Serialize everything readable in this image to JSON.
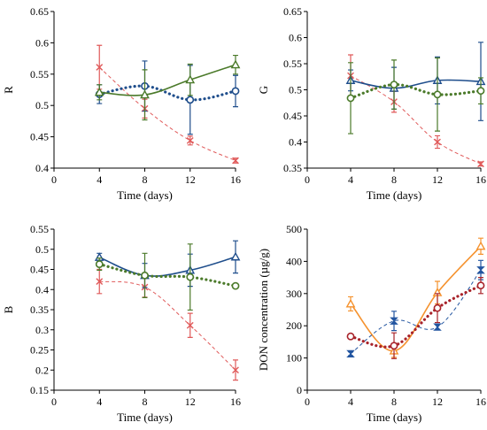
{
  "chart_data": [
    {
      "type": "line",
      "panel": "top-left",
      "xlabel": "Time (days)",
      "ylabel": "R",
      "xlim": [
        0,
        16
      ],
      "ylim": [
        0.4,
        0.65
      ],
      "xticks": [
        0,
        4,
        8,
        12,
        16
      ],
      "yticks": [
        0.4,
        0.45,
        0.5,
        0.55,
        0.6,
        0.65
      ],
      "ytick_labels": [
        "0.4",
        "0.45",
        "0.5",
        "0.55",
        "0.6",
        "0.65"
      ],
      "series": [
        {
          "color": "#e05a5a",
          "marker": "cross",
          "line": "dashed-thin",
          "x": [
            4,
            8,
            12,
            16
          ],
          "y": [
            0.561,
            0.495,
            0.444,
            0.412
          ],
          "err": [
            0.035,
            0.015,
            0.007,
            0.004
          ]
        },
        {
          "color": "#1f4e8c",
          "marker": "circle",
          "line": "dotted-thick",
          "x": [
            4,
            8,
            12,
            16
          ],
          "y": [
            0.518,
            0.531,
            0.509,
            0.523
          ],
          "err": [
            0.015,
            0.04,
            0.055,
            0.025
          ]
        },
        {
          "color": "#4b7a2a",
          "marker": "triangle",
          "line": "solid",
          "x": [
            4,
            8,
            12,
            16
          ],
          "y": [
            0.521,
            0.517,
            0.541,
            0.565
          ],
          "err": [
            0.012,
            0.04,
            0.025,
            0.015
          ]
        }
      ]
    },
    {
      "type": "line",
      "panel": "top-right",
      "xlabel": "Time (days)",
      "ylabel": "G",
      "xlim": [
        0,
        16
      ],
      "ylim": [
        0.35,
        0.65
      ],
      "xticks": [
        0,
        4,
        8,
        12,
        16
      ],
      "yticks": [
        0.35,
        0.4,
        0.45,
        0.5,
        0.55,
        0.6,
        0.65
      ],
      "ytick_labels": [
        "0.35",
        "0.4",
        "0.45",
        "0.5",
        "0.55",
        "0.6",
        "0.65"
      ],
      "series": [
        {
          "color": "#e05a5a",
          "marker": "cross",
          "line": "dashed-thin",
          "x": [
            4,
            8,
            12,
            16
          ],
          "y": [
            0.527,
            0.477,
            0.4,
            0.358
          ],
          "err": [
            0.04,
            0.02,
            0.012,
            0.004
          ]
        },
        {
          "color": "#1f4e8c",
          "marker": "triangle",
          "line": "solid",
          "x": [
            4,
            8,
            12,
            16
          ],
          "y": [
            0.518,
            0.503,
            0.518,
            0.516
          ],
          "err": [
            0.02,
            0.04,
            0.045,
            0.075
          ]
        },
        {
          "color": "#4b7a2a",
          "marker": "circle",
          "line": "dotted-thick",
          "x": [
            4,
            8,
            12,
            16
          ],
          "y": [
            0.484,
            0.51,
            0.491,
            0.498
          ],
          "err": [
            0.068,
            0.047,
            0.07,
            0.025
          ]
        }
      ]
    },
    {
      "type": "line",
      "panel": "bottom-left",
      "xlabel": "Time (days)",
      "ylabel": "B",
      "xlim": [
        0,
        16
      ],
      "ylim": [
        0.15,
        0.55
      ],
      "xticks": [
        0,
        4,
        8,
        12,
        16
      ],
      "yticks": [
        0.15,
        0.2,
        0.25,
        0.3,
        0.35,
        0.4,
        0.45,
        0.5,
        0.55
      ],
      "ytick_labels": [
        "0.15",
        "0.2",
        "0.25",
        "0.3",
        "0.35",
        "0.4",
        "0.45",
        "0.5",
        "0.55"
      ],
      "series": [
        {
          "color": "#e05a5a",
          "marker": "cross",
          "line": "dashed-thin",
          "x": [
            4,
            8,
            12,
            16
          ],
          "y": [
            0.42,
            0.406,
            0.311,
            0.2
          ],
          "err": [
            0.03,
            0.025,
            0.03,
            0.025
          ]
        },
        {
          "color": "#1f4e8c",
          "marker": "triangle",
          "line": "solid",
          "x": [
            4,
            8,
            12,
            16
          ],
          "y": [
            0.48,
            0.435,
            0.448,
            0.481
          ],
          "err": [
            0.01,
            0.03,
            0.04,
            0.04
          ]
        },
        {
          "color": "#4b7a2a",
          "marker": "circle",
          "line": "dotted-thick",
          "x": [
            4,
            8,
            12,
            16
          ],
          "y": [
            0.463,
            0.435,
            0.431,
            0.409
          ],
          "err": [
            0.015,
            0.055,
            0.082,
            0.005
          ]
        }
      ]
    },
    {
      "type": "line",
      "panel": "bottom-right",
      "xlabel": "Time (days)",
      "ylabel": "DON concentration (µg/g)",
      "xlim": [
        0,
        16
      ],
      "ylim": [
        0,
        500
      ],
      "xticks": [
        0,
        4,
        8,
        12,
        16
      ],
      "yticks": [
        0,
        100,
        200,
        300,
        400,
        500
      ],
      "ytick_labels": [
        "0",
        "100",
        "200",
        "300",
        "400",
        "500"
      ],
      "series": [
        {
          "color": "#f5922e",
          "marker": "triangle",
          "line": "solid",
          "x": [
            4,
            8,
            12,
            16
          ],
          "y": [
            268,
            122,
            303,
            447
          ],
          "err": [
            22,
            20,
            35,
            25
          ]
        },
        {
          "color": "#2255a0",
          "marker": "hourglass",
          "line": "dashed-thin",
          "x": [
            4,
            8,
            12,
            16
          ],
          "y": [
            113,
            215,
            196,
            373
          ],
          "err": [
            6,
            30,
            8,
            30
          ]
        },
        {
          "color": "#a8232a",
          "marker": "circle",
          "line": "dotted-thick",
          "x": [
            4,
            8,
            12,
            16
          ],
          "y": [
            167,
            138,
            255,
            325
          ],
          "err": [
            5,
            40,
            45,
            25
          ]
        }
      ]
    }
  ]
}
